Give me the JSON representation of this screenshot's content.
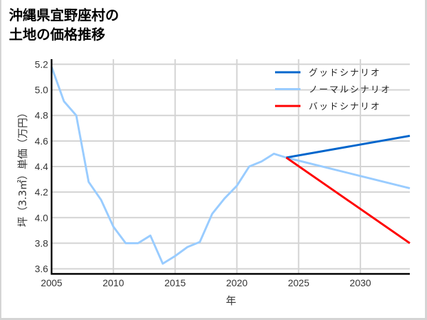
{
  "title": {
    "line1": "沖縄県宜野座村の",
    "line2": "土地の価格推移"
  },
  "chart_data": {
    "type": "line",
    "title": "沖縄県宜野座村の土地の価格推移",
    "xlabel": "年",
    "ylabel": "坪（3.3㎡）単価（万円）",
    "xlim": [
      2005,
      2034
    ],
    "ylim": [
      3.56,
      5.24
    ],
    "x_ticks": [
      2005,
      2010,
      2015,
      2020,
      2025,
      2030
    ],
    "y_ticks": [
      3.6,
      3.8,
      4.0,
      4.2,
      4.4,
      4.6,
      4.8,
      5.0,
      5.2
    ],
    "grid": true,
    "legend_position": "upper right",
    "series": [
      {
        "name": "ノーマルシナリオ",
        "color": "#99ccff",
        "x": [
          2005,
          2006,
          2007,
          2008,
          2009,
          2010,
          2011,
          2012,
          2013,
          2014,
          2015,
          2016,
          2017,
          2018,
          2019,
          2020,
          2021,
          2022,
          2023,
          2024,
          2034
        ],
        "values": [
          5.18,
          4.91,
          4.8,
          4.28,
          4.14,
          3.93,
          3.8,
          3.8,
          3.86,
          3.64,
          3.7,
          3.77,
          3.81,
          4.03,
          4.15,
          4.25,
          4.4,
          4.44,
          4.5,
          4.47,
          4.23
        ]
      },
      {
        "name": "グッドシナリオ",
        "color": "#0066cc",
        "x": [
          2024,
          2034
        ],
        "values": [
          4.47,
          4.64
        ]
      },
      {
        "name": "バッドシナリオ",
        "color": "#ff0000",
        "x": [
          2024,
          2034
        ],
        "values": [
          4.47,
          3.8
        ]
      }
    ]
  },
  "legend": [
    {
      "label": "グッドシナリオ",
      "color": "#0066cc"
    },
    {
      "label": "ノーマルシナリオ",
      "color": "#99ccff"
    },
    {
      "label": "バッドシナリオ",
      "color": "#ff0000"
    }
  ],
  "axes": {
    "xlabel": "年",
    "ylabel": "坪（3.3㎡）単価（万円）"
  }
}
